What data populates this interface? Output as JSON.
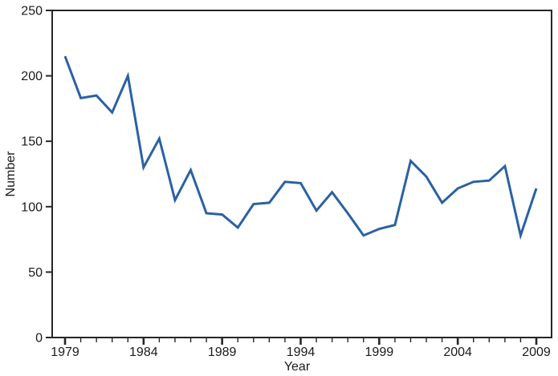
{
  "chart_data": {
    "type": "line",
    "title": "",
    "xlabel": "Year",
    "ylabel": "Number",
    "x": [
      1979,
      1980,
      1981,
      1982,
      1983,
      1984,
      1985,
      1986,
      1987,
      1988,
      1989,
      1990,
      1991,
      1992,
      1993,
      1994,
      1995,
      1996,
      1997,
      1998,
      1999,
      2000,
      2001,
      2002,
      2003,
      2004,
      2005,
      2006,
      2007,
      2008,
      2009
    ],
    "values": [
      215,
      183,
      185,
      172,
      200,
      130,
      152,
      105,
      128,
      95,
      94,
      84,
      102,
      103,
      119,
      118,
      97,
      111,
      95,
      78,
      83,
      86,
      135,
      123,
      103,
      114,
      119,
      120,
      131,
      78,
      114
    ],
    "xlim": [
      1979,
      2009
    ],
    "ylim": [
      0,
      250
    ],
    "y_ticks": [
      0,
      50,
      100,
      150,
      200,
      250
    ],
    "x_major_ticks": [
      1979,
      1984,
      1989,
      1994,
      1999,
      2004,
      2009
    ],
    "x_minor_tick_step": 1,
    "grid": false,
    "legend": null,
    "frame": "box",
    "line_color": "#2a61a4",
    "axis_color": "#262626",
    "text_color": "#1a1a1a",
    "background": "#ffffff"
  }
}
